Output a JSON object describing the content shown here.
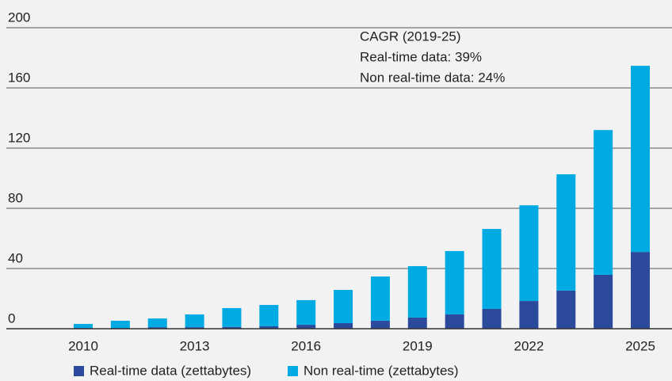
{
  "chart_data": {
    "type": "stacked_bar",
    "categories": [
      "2010",
      null,
      null,
      "2013",
      null,
      null,
      "2016",
      null,
      null,
      "2019",
      null,
      null,
      "2022",
      null,
      null,
      "2025"
    ],
    "series": [
      {
        "name": "Real-time data (zettabytes)",
        "color": "#2b4a9c",
        "values": [
          0.5,
          0.5,
          1,
          1,
          1.2,
          1.6,
          2.6,
          3.7,
          5.3,
          7.4,
          9.5,
          13.2,
          18.4,
          25.3,
          35.8,
          51
        ]
      },
      {
        "name": "Non real-time (zettabytes)",
        "color": "#00aae3",
        "values": [
          2.7,
          4.8,
          5.8,
          8.5,
          12.5,
          14.2,
          16.4,
          22.1,
          29.4,
          34.2,
          42.1,
          53.1,
          63.6,
          77.3,
          96.2,
          123.7
        ]
      }
    ],
    "annotation": [
      "CAGR (2019-25)",
      "Real-time data: 39%",
      "Non real-time data: 24%"
    ],
    "ylim": [
      0,
      200
    ],
    "yticks": [
      0,
      40,
      80,
      120,
      160,
      200
    ],
    "grid": true
  }
}
